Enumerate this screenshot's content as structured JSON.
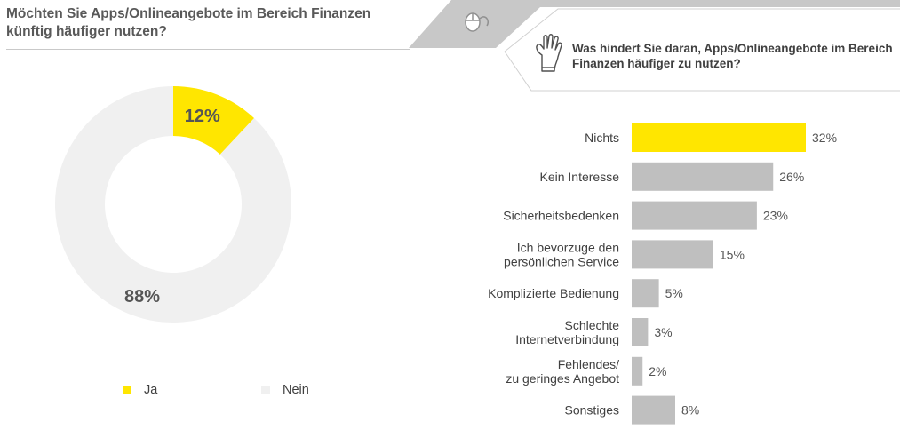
{
  "left_title": "Möchten Sie Apps/Onlineangebote im Bereich Finanzen künftig häufiger nutzen?",
  "right_title": "Was hindert Sie daran, Apps/Onlineangebote im Bereich Finanzen häufiger zu nutzen?",
  "legend": {
    "yes_label": "Ja",
    "no_label": "Nein"
  },
  "colors": {
    "accent": "#ffe600",
    "bar": "#bfbfbf",
    "donut_rest": "#f0f0f0",
    "banner": "#c8c8c8"
  },
  "icons": {
    "banner_icon": "mouse-icon",
    "hand_icon": "raised-hand-icon"
  },
  "chart_data": [
    {
      "type": "pie",
      "title": "Möchten Sie Apps/Onlineangebote im Bereich Finanzen künftig häufiger nutzen?",
      "categories": [
        "Ja",
        "Nein"
      ],
      "values": [
        12,
        88
      ],
      "labels": [
        "12%",
        "88%"
      ],
      "legend": "bottom"
    },
    {
      "type": "bar",
      "orientation": "horizontal",
      "title": "Was hindert Sie daran, Apps/Onlineangebote im Bereich Finanzen häufiger zu nutzen?",
      "categories": [
        [
          "Nichts"
        ],
        [
          "Kein Interesse"
        ],
        [
          "Sicherheitsbedenken"
        ],
        [
          "Ich bevorzuge den",
          "persönlichen Service"
        ],
        [
          "Komplizierte Bedienung"
        ],
        [
          "Schlechte",
          "Internetverbindung"
        ],
        [
          "Fehlendes/",
          "zu geringes Angebot"
        ],
        [
          "Sonstiges"
        ]
      ],
      "values": [
        32,
        26,
        23,
        15,
        5,
        3,
        2,
        8
      ],
      "labels": [
        "32%",
        "26%",
        "23%",
        "15%",
        "5%",
        "3%",
        "2%",
        "8%"
      ],
      "highlight_index": 0,
      "xlim": [
        0,
        32
      ]
    }
  ]
}
